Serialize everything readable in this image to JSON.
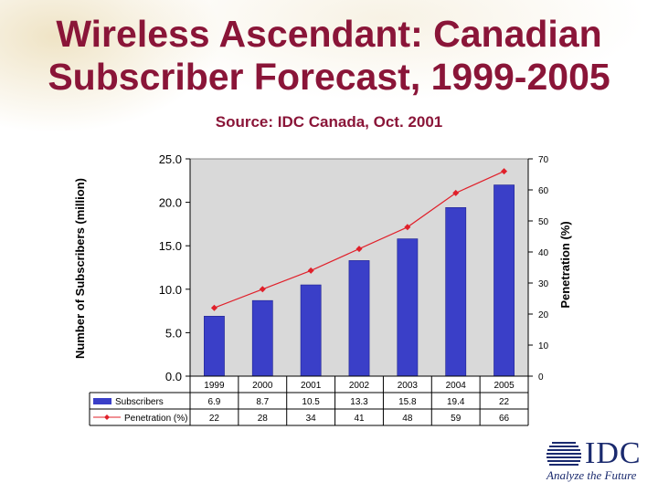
{
  "slide": {
    "title_line1": "Wireless Ascendant: Canadian",
    "title_line2": "Subscriber Forecast, 1999-2005",
    "subtitle": "Source: IDC Canada, Oct. 2001"
  },
  "logo": {
    "name": "IDC",
    "tagline": "Analyze the Future"
  },
  "colors": {
    "title": "#8a1538",
    "bars": "#3a3fc8",
    "line": "#e0202a",
    "plot_bg": "#d9d9d9",
    "logo": "#1a2a6e"
  },
  "chart_data": {
    "type": "bar",
    "title": "Wireless Ascendant: Canadian Subscriber Forecast, 1999-2005",
    "categories": [
      "1999",
      "2000",
      "2001",
      "2002",
      "2003",
      "2004",
      "2005"
    ],
    "series": [
      {
        "name": "Subscribers",
        "type": "bar",
        "axis": "left",
        "values": [
          6.9,
          8.7,
          10.5,
          13.3,
          15.8,
          19.4,
          22
        ],
        "labels": [
          "6.9",
          "8.7",
          "10.5",
          "13.3",
          "15.8",
          "19.4",
          "22"
        ]
      },
      {
        "name": "Penetration (%)",
        "type": "line",
        "axis": "right",
        "values": [
          22,
          28,
          34,
          41,
          48,
          59,
          66
        ],
        "labels": [
          "22",
          "28",
          "34",
          "41",
          "48",
          "59",
          "66"
        ]
      }
    ],
    "ylabel": "Number of Subscribers (million)",
    "ylabel_right": "Penetration (%)",
    "ylim": [
      0,
      25
    ],
    "ylim_right": [
      0,
      70
    ],
    "yticks": [
      "0.0",
      "5.0",
      "10.0",
      "15.0",
      "20.0",
      "25.0"
    ],
    "yticks_right": [
      "0",
      "10",
      "20",
      "30",
      "40",
      "50",
      "60",
      "70"
    ],
    "data_table": true,
    "grid": false
  }
}
